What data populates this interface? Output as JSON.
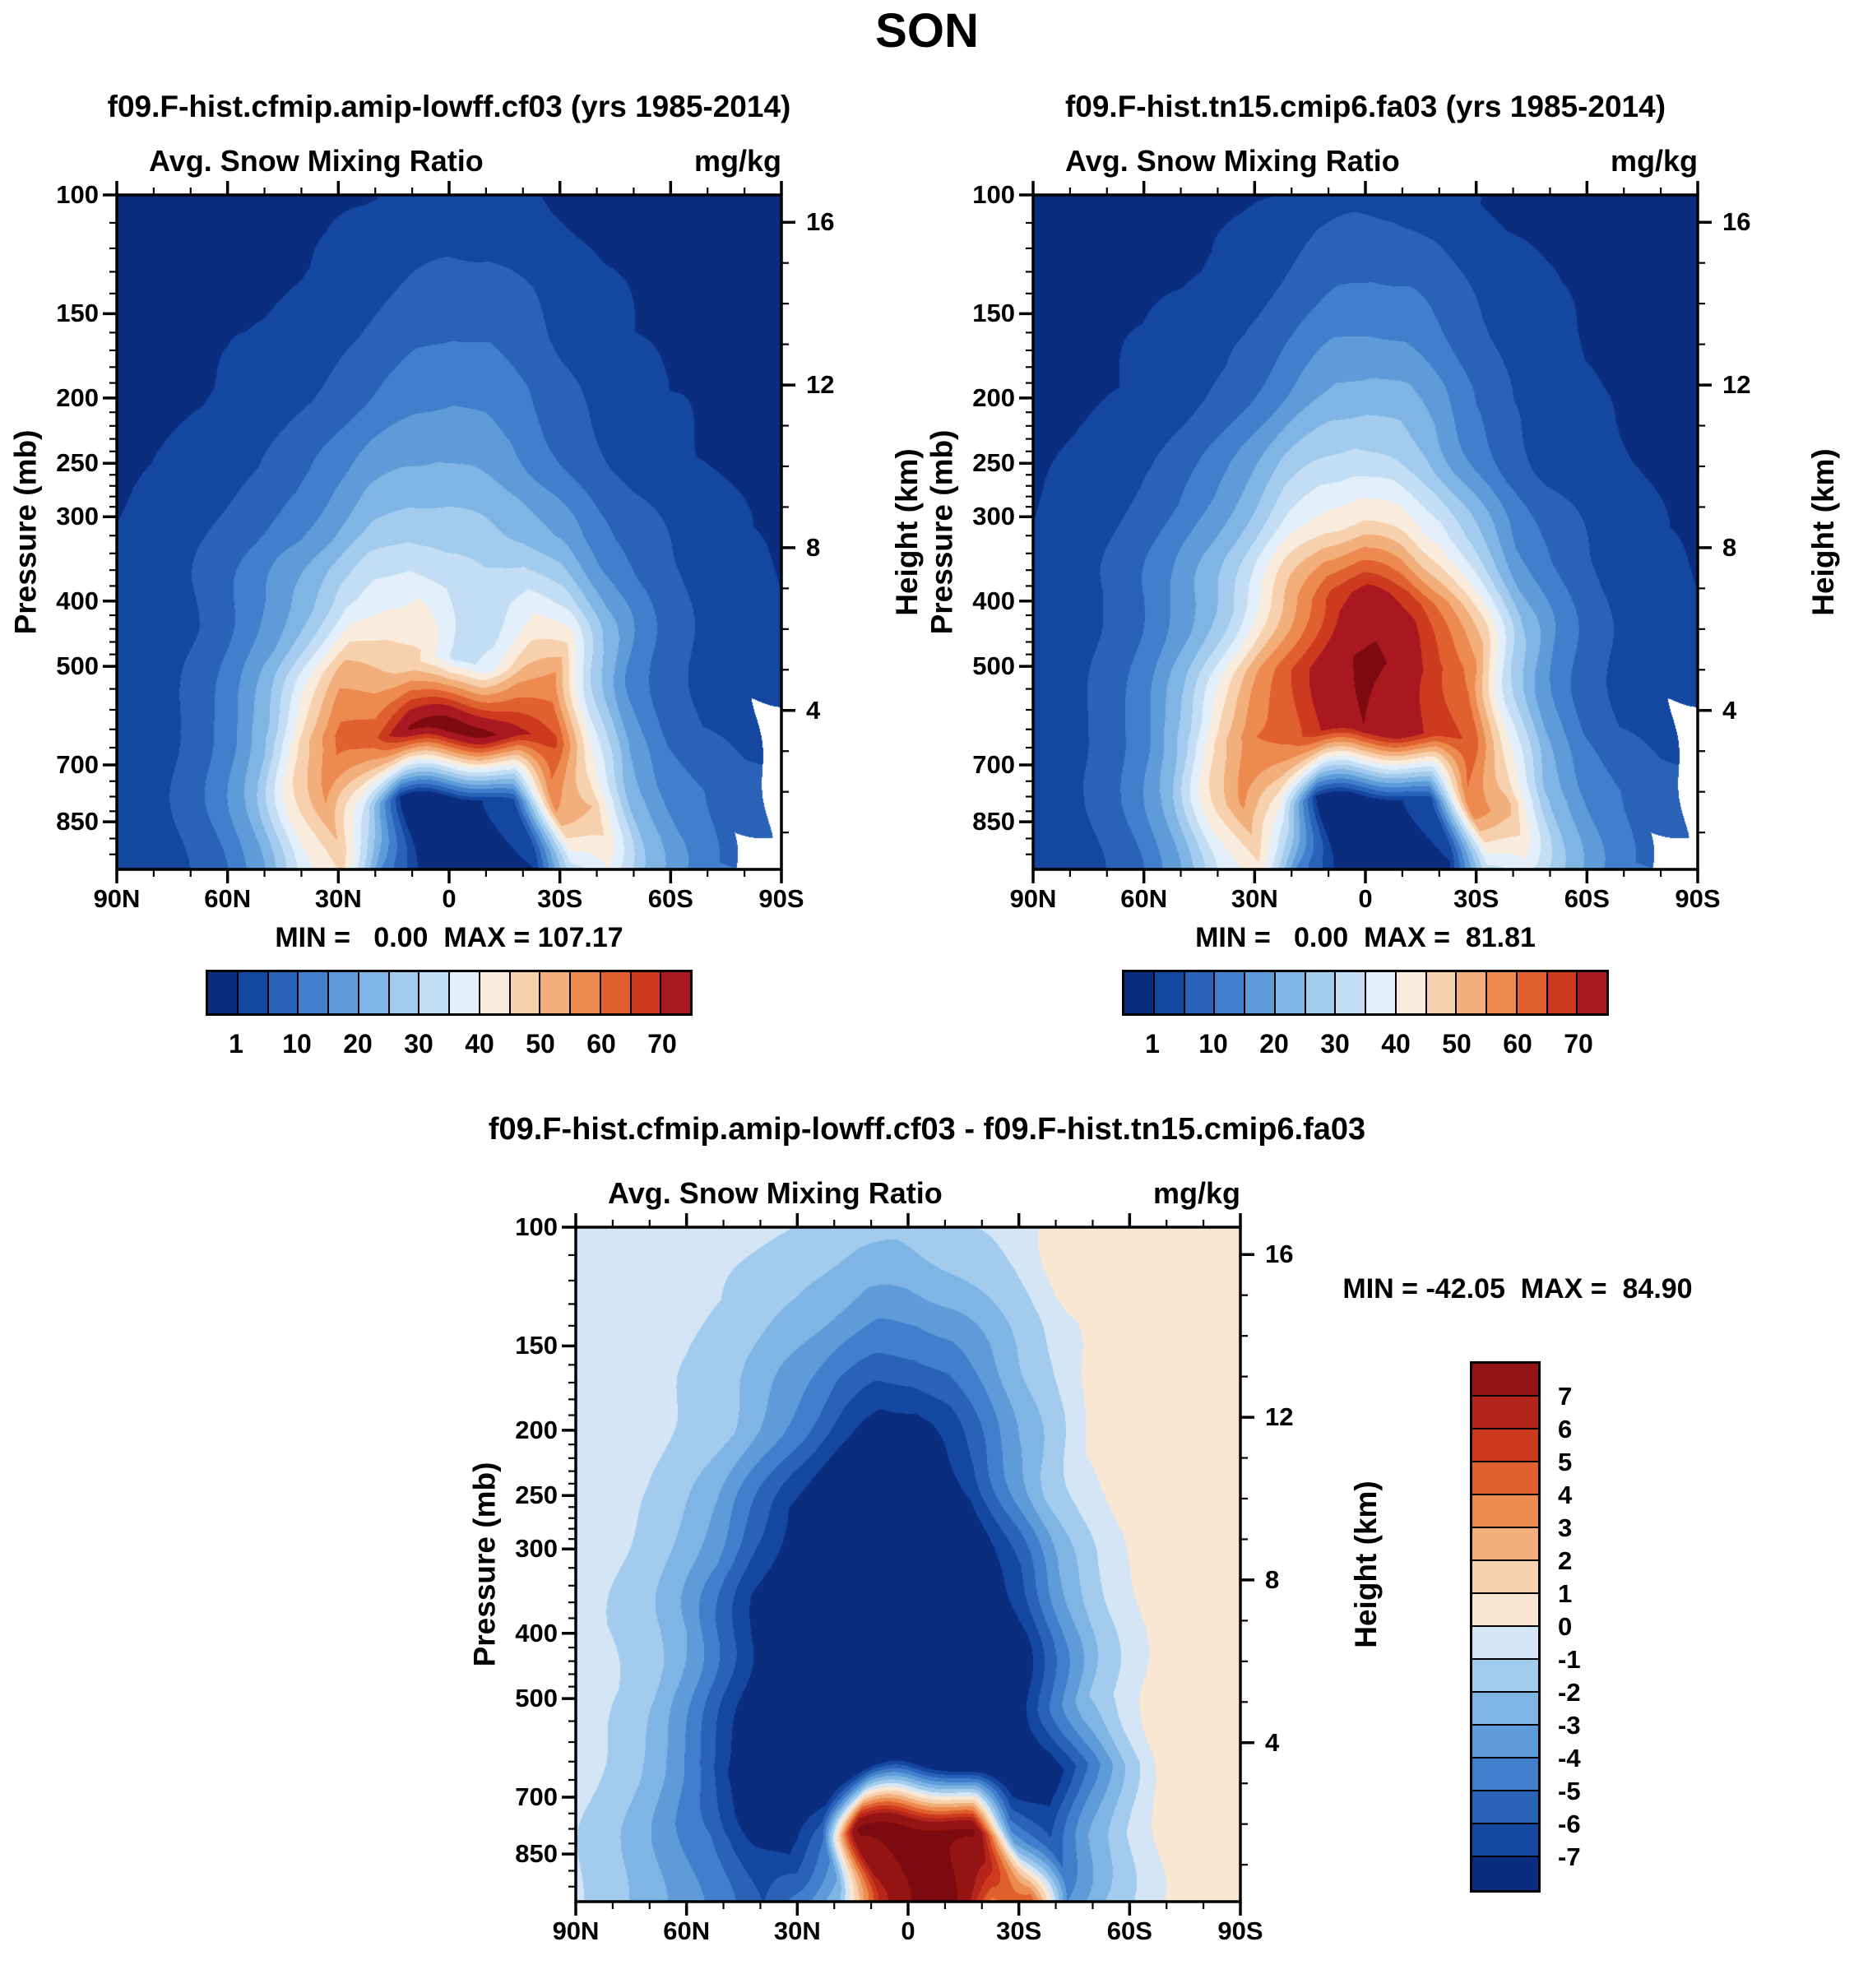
{
  "title": "SON",
  "colors": {
    "snow_palette": [
      "#0a2d80",
      "#1448a0",
      "#2a62b8",
      "#417fcc",
      "#5f9bd9",
      "#7fb5e4",
      "#a2cbee",
      "#c3def4",
      "#e2eef9",
      "#faecdd",
      "#f7d1ad",
      "#f2ae7b",
      "#ec8a50",
      "#e1602f",
      "#ce3a1e",
      "#a91821"
    ],
    "snow_over_color": "#7c0a10",
    "diff_palette": [
      "#0a2d80",
      "#1448a0",
      "#2a62b8",
      "#417fcc",
      "#5f9bd9",
      "#7fb5e4",
      "#a2cbee",
      "#d4e6f5",
      "#f9e6d3",
      "#f7d1ad",
      "#f2ae7b",
      "#ec8a50",
      "#e1602f",
      "#ce3a1e",
      "#b5251c",
      "#941313"
    ],
    "diff_over_color": "#7c0a10",
    "missing_color": "#ffffff"
  },
  "axes": {
    "pressure_label": "Pressure (mb)",
    "height_label": "Height (km)",
    "pressure_ticks": [
      100,
      150,
      200,
      250,
      300,
      400,
      500,
      700,
      850
    ],
    "pressure_minor_ticks": [
      110,
      120,
      130,
      140,
      160,
      170,
      180,
      190,
      210,
      220,
      230,
      240,
      260,
      270,
      280,
      290,
      320,
      340,
      360,
      380,
      420,
      440,
      460,
      480,
      540,
      580,
      620,
      660,
      740,
      780,
      820,
      900,
      950
    ],
    "height_ticks": [
      16,
      12,
      8,
      4
    ],
    "height_minor_ticks": [
      1,
      2,
      3,
      5,
      6,
      7,
      9,
      10,
      11,
      13,
      14,
      15
    ],
    "lat_labels": [
      "90N",
      "60N",
      "30N",
      "0",
      "30S",
      "60S",
      "90S"
    ]
  },
  "panels": [
    {
      "title": "f09.F-hist.cfmip.amip-lowff.cf03 (yrs 1985-2014)",
      "subtitle": "Avg. Snow Mixing Ratio",
      "units": "mg/kg",
      "stats": "MIN =   0.00  MAX = 107.17"
    },
    {
      "title": "f09.F-hist.tn15.cmip6.fa03 (yrs 1985-2014)",
      "subtitle": "Avg. Snow Mixing Ratio",
      "units": "mg/kg",
      "stats": "MIN =   0.00  MAX =  81.81"
    }
  ],
  "diff_panel": {
    "title": "f09.F-hist.cfmip.amip-lowff.cf03 - f09.F-hist.tn15.cmip6.fa03",
    "subtitle": "Avg. Snow Mixing Ratio",
    "units": "mg/kg",
    "stats": "MIN = -42.05  MAX =  84.90"
  },
  "chart_data": [
    {
      "type": "heatmap",
      "name": "model1_avg_snow_mixing_ratio",
      "title": "f09.F-hist.cfmip.amip-lowff.cf03 (yrs 1985-2014)",
      "units": "mg/kg",
      "x_axis": "latitude 90N to 90S, 19 columns at 10 degree steps",
      "y_axis": "pressure 100 mb (top) to 1000 mb (bottom), 11 log-spaced rows; null = below-terrain missing (white)",
      "min": 0.0,
      "max": 107.17,
      "levels": [
        1,
        5,
        10,
        15,
        20,
        25,
        30,
        35,
        40,
        45,
        50,
        55,
        60,
        65,
        70
      ],
      "level_labels": [
        "1",
        "10",
        "20",
        "30",
        "40",
        "50",
        "60",
        "70"
      ],
      "over_from": 78,
      "grid": [
        [
          0.3,
          0.3,
          0.3,
          0.3,
          0.3,
          0.3,
          0.5,
          0.8,
          1.5,
          2,
          2,
          1.5,
          0.8,
          0.5,
          0.3,
          0.3,
          0.3,
          0.3,
          0.3
        ],
        [
          0.3,
          0.3,
          0.3,
          0.4,
          0.5,
          0.8,
          1.5,
          3,
          4,
          5,
          5,
          4,
          2,
          1,
          0.5,
          0.4,
          0.3,
          0.3,
          0.3
        ],
        [
          0.4,
          0.4,
          0.5,
          0.8,
          1.2,
          2,
          4,
          6,
          8,
          9,
          9,
          7,
          4,
          2,
          1,
          0.8,
          0.5,
          0.4,
          0.4
        ],
        [
          0.5,
          0.6,
          0.8,
          1.5,
          3,
          5,
          8,
          11,
          13,
          14,
          13,
          11,
          7,
          4,
          2,
          1,
          0.8,
          0.5,
          0.5
        ],
        [
          0.8,
          1,
          1.5,
          3,
          5,
          8,
          13,
          17,
          19,
          20,
          19,
          17,
          12,
          7,
          4,
          2,
          1,
          0.8,
          0.6
        ],
        [
          1,
          1.5,
          3,
          6,
          9,
          14,
          20,
          26,
          28,
          27,
          26,
          24,
          19,
          12,
          7,
          4,
          2,
          1,
          0.8
        ],
        [
          1.5,
          2,
          4,
          9,
          15,
          24,
          33,
          38,
          40,
          34,
          33,
          38,
          33,
          20,
          11,
          6,
          3,
          1.5,
          1
        ],
        [
          2,
          3,
          6,
          12,
          22,
          38,
          52,
          50,
          46,
          33,
          36,
          50,
          55,
          30,
          14,
          7,
          4,
          2,
          2
        ],
        [
          2,
          3,
          7,
          14,
          26,
          48,
          62,
          64,
          80,
          85,
          82,
          72,
          66,
          38,
          18,
          9,
          5,
          3,
          null
        ],
        [
          1.5,
          2.5,
          6,
          12,
          22,
          42,
          55,
          35,
          0.5,
          0.3,
          0.3,
          5,
          55,
          50,
          24,
          14,
          10,
          8,
          null
        ],
        [
          1,
          2,
          5,
          10,
          20,
          38,
          45,
          15,
          0.3,
          0.2,
          0.2,
          0.5,
          30,
          40,
          25,
          16,
          10,
          null,
          null
        ]
      ]
    },
    {
      "type": "heatmap",
      "name": "model2_avg_snow_mixing_ratio",
      "title": "f09.F-hist.tn15.cmip6.fa03 (yrs 1985-2014)",
      "units": "mg/kg",
      "x_axis": "latitude 90N to 90S, 19 columns at 10 degree steps",
      "y_axis": "pressure 100 mb (top) to 1000 mb (bottom), 11 log-spaced rows; null = below-terrain missing (white)",
      "min": 0.0,
      "max": 81.81,
      "levels": [
        1,
        5,
        10,
        15,
        20,
        25,
        30,
        35,
        40,
        45,
        50,
        55,
        60,
        65,
        70
      ],
      "level_labels": [
        "1",
        "10",
        "20",
        "30",
        "40",
        "50",
        "60",
        "70"
      ],
      "over_from": 78,
      "grid": [
        [
          0.3,
          0.3,
          0.3,
          0.3,
          0.3,
          0.4,
          0.6,
          1.2,
          2.5,
          3,
          3,
          2.5,
          1.2,
          0.6,
          0.4,
          0.3,
          0.3,
          0.3,
          0.3
        ],
        [
          0.3,
          0.3,
          0.4,
          0.5,
          0.7,
          1.2,
          2.5,
          5,
          7,
          8,
          8,
          6,
          3,
          1.5,
          0.8,
          0.5,
          0.4,
          0.3,
          0.3
        ],
        [
          0.4,
          0.5,
          0.6,
          1,
          1.8,
          3,
          6,
          10,
          13,
          14,
          13,
          10,
          6,
          3,
          1.5,
          0.8,
          0.5,
          0.4,
          0.4
        ],
        [
          0.5,
          0.7,
          1,
          2,
          4,
          7,
          12,
          17,
          21,
          22,
          21,
          17,
          10,
          5,
          2.5,
          1.2,
          0.8,
          0.5,
          0.5
        ],
        [
          0.8,
          1.2,
          2,
          4,
          7,
          12,
          19,
          26,
          30,
          32,
          30,
          26,
          17,
          9,
          4,
          2,
          1.2,
          0.8,
          0.6
        ],
        [
          1,
          1.8,
          3.5,
          7,
          12,
          19,
          28,
          38,
          44,
          46,
          44,
          38,
          26,
          14,
          8,
          4,
          2,
          1,
          0.8
        ],
        [
          1.5,
          2.5,
          5,
          10,
          17,
          27,
          40,
          55,
          68,
          72,
          68,
          55,
          40,
          22,
          12,
          6,
          3,
          1.5,
          1
        ],
        [
          2,
          3.5,
          7,
          13,
          24,
          40,
          55,
          66,
          76,
          80,
          76,
          66,
          58,
          32,
          16,
          8,
          4,
          2,
          2
        ],
        [
          2,
          4,
          8,
          15,
          28,
          48,
          60,
          62,
          72,
          78,
          74,
          68,
          64,
          40,
          20,
          10,
          5,
          3,
          null
        ],
        [
          1.5,
          3,
          6,
          12,
          22,
          42,
          56,
          40,
          0.5,
          0.3,
          0.3,
          3,
          58,
          52,
          26,
          15,
          10,
          8,
          null
        ],
        [
          1,
          2,
          5,
          10,
          20,
          36,
          42,
          14,
          0.3,
          0.2,
          0.2,
          0.5,
          30,
          38,
          26,
          16,
          10,
          null,
          null
        ]
      ]
    },
    {
      "type": "heatmap",
      "name": "difference_model1_minus_model2",
      "title": "f09.F-hist.cfmip.amip-lowff.cf03 - f09.F-hist.tn15.cmip6.fa03",
      "units": "mg/kg",
      "x_axis": "latitude 90N to 90S, 19 columns at 10 degree steps",
      "y_axis": "pressure 100 mb (top) to 1000 mb (bottom), 11 log-spaced rows",
      "min": -42.05,
      "max": 84.9,
      "levels": [
        -7,
        -6,
        -5,
        -4,
        -3,
        -2,
        -1,
        0,
        1,
        2,
        3,
        4,
        5,
        6,
        7
      ],
      "level_labels_top_to_bottom": [
        "7",
        "6",
        "5",
        "4",
        "3",
        "2",
        "1",
        "0",
        "-1",
        "-2",
        "-3",
        "-4",
        "-5",
        "-6",
        "-7"
      ],
      "over_from": 9.5,
      "grid": [
        [
          -0.3,
          -0.3,
          -0.4,
          -0.5,
          -0.6,
          -0.8,
          -1,
          -1.2,
          -1.5,
          -1.5,
          -1.3,
          -1,
          -0.8,
          0.3,
          0.4,
          0.5,
          0.6,
          0.5,
          0.4
        ],
        [
          -0.4,
          -0.4,
          -0.5,
          -0.7,
          -1,
          -1.5,
          -2,
          -2.5,
          -3,
          -3,
          -2.5,
          -2,
          -1.2,
          0.3,
          0.5,
          0.6,
          0.7,
          0.6,
          0.4
        ],
        [
          -0.4,
          -0.5,
          -0.7,
          -1,
          -1.5,
          -2.5,
          -3.5,
          -4.5,
          -5,
          -5,
          -4.5,
          -3.5,
          -2,
          -0.8,
          0.4,
          0.5,
          0.7,
          0.6,
          0.5
        ],
        [
          -0.5,
          -0.6,
          -0.8,
          -1.3,
          -2,
          -3.5,
          -5,
          -6.5,
          -7.5,
          -7.5,
          -6.5,
          -5,
          -3,
          -1.5,
          0.3,
          0.5,
          0.7,
          0.7,
          0.5
        ],
        [
          -0.5,
          -0.7,
          -1,
          -1.8,
          -3,
          -5,
          -7,
          -8,
          -9,
          -9,
          -8,
          -7,
          -4.5,
          -2,
          -0.7,
          0.4,
          0.8,
          0.7,
          0.5
        ],
        [
          -0.6,
          -0.8,
          -1.2,
          -2.5,
          -4,
          -6.5,
          -8,
          -9,
          -9,
          -9,
          -9,
          -8,
          -6,
          -3,
          -1,
          0.3,
          0.8,
          0.8,
          0.6
        ],
        [
          -0.6,
          -1,
          -1.5,
          -3,
          -5.5,
          -8,
          -9,
          -9,
          -9,
          -9,
          -9,
          -8.5,
          -7,
          -4,
          -1.5,
          -0.3,
          0.8,
          0.8,
          0.6
        ],
        [
          -0.7,
          -1,
          -2,
          -4,
          -6.5,
          -8.5,
          -9,
          -9,
          -9,
          -9,
          -9,
          -9,
          -8,
          -5,
          -2,
          -0.5,
          0.7,
          0.9,
          0.7
        ],
        [
          -0.7,
          -1.2,
          -2.5,
          -4.5,
          -7,
          -9,
          -9,
          -9,
          -9,
          -8,
          -8,
          -9,
          -9,
          -8,
          -5,
          -2,
          0.5,
          0.9,
          0.7
        ],
        [
          -0.8,
          -1.5,
          -2.5,
          -4,
          -5,
          -7,
          -8,
          -5,
          10,
          10,
          10,
          10,
          -3,
          -6,
          -3,
          -1,
          0.5,
          0.8,
          0.6
        ],
        [
          -0.8,
          -1.5,
          -2.5,
          -3.5,
          -4.5,
          -6,
          -4,
          -2,
          6,
          10,
          10,
          3,
          6,
          -4,
          -2,
          -0.8,
          0.4,
          0.7,
          0.5
        ]
      ]
    }
  ]
}
